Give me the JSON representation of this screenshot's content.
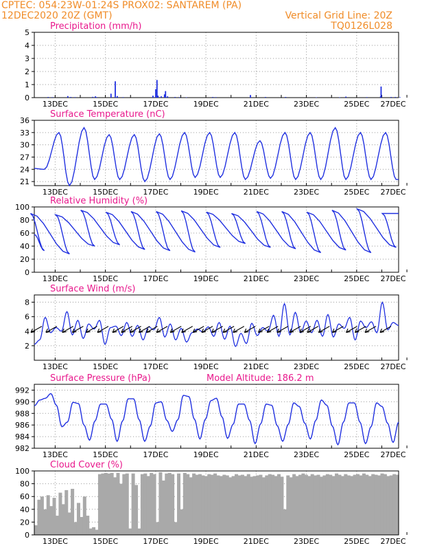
{
  "header": {
    "line1_left": "CPTEC:  054:23W-01:24S   PROX02: SANTAREM (PA)",
    "line2_left": "12DEC2020 20Z (GMT)",
    "line2_right": "Vertical Grid Line: 20Z",
    "line3_right": "TQ0126L028"
  },
  "colors": {
    "header": "#f08c28",
    "title": "#e8188c",
    "series": "#2030e0",
    "cloud": "#a9a9a9",
    "grid": "#9a9a9a"
  },
  "x_tick_labels": [
    "13DEC",
    "15DEC",
    "17DEC",
    "19DEC",
    "21DEC",
    "23DEC",
    "25DEC",
    "27DEC"
  ],
  "chart_data": [
    {
      "type": "bar",
      "title": "Precipitation (mm/h)",
      "ylim": [
        0,
        5
      ],
      "yticks": [
        0,
        1,
        2,
        3,
        4,
        5
      ],
      "series": [
        {
          "spikes": [
            [
              0.55,
              0.05
            ],
            [
              0.72,
              0.04
            ],
            [
              1.33,
              0.12
            ],
            [
              1.45,
              0.05
            ],
            [
              1.62,
              0.04
            ],
            [
              2.32,
              0.06
            ],
            [
              2.43,
              0.1
            ],
            [
              2.48,
              0.04
            ],
            [
              3.05,
              0.3
            ],
            [
              3.22,
              1.25
            ],
            [
              3.3,
              0.12
            ],
            [
              3.53,
              0.04
            ],
            [
              4.72,
              0.15
            ],
            [
              4.83,
              0.65
            ],
            [
              4.88,
              1.35
            ],
            [
              4.92,
              0.15
            ],
            [
              5.05,
              0.1
            ],
            [
              5.18,
              0.25
            ],
            [
              5.22,
              0.5
            ],
            [
              5.3,
              0.1
            ],
            [
              5.6,
              0.05
            ],
            [
              5.78,
              0.04
            ],
            [
              6.05,
              0.03
            ],
            [
              7.1,
              0.05
            ],
            [
              7.22,
              0.04
            ],
            [
              8.6,
              0.2
            ],
            [
              9.2,
              0.05
            ],
            [
              10.0,
              0.05
            ],
            [
              11.22,
              0.03
            ],
            [
              12.15,
              0.03
            ],
            [
              12.4,
              0.08
            ],
            [
              13.23,
              0.04
            ],
            [
              13.78,
              0.1
            ],
            [
              13.8,
              0.85
            ],
            [
              14.2,
              0.05
            ],
            [
              14.37,
              0.05
            ],
            [
              14.55,
              0.04
            ]
          ]
        }
      ]
    },
    {
      "type": "line",
      "title": "Surface Temperature (nC)",
      "ylim": [
        20,
        36
      ],
      "yticks": [
        21,
        24,
        27,
        30,
        33,
        36
      ],
      "series": [
        {
          "min": [
            24,
            20,
            21.5,
            21.5,
            21,
            21.5,
            22,
            22,
            21.5,
            21.8,
            21.5,
            21.5,
            21.5,
            21.5,
            21.5,
            21.5
          ],
          "max": [
            33,
            34.2,
            32.5,
            32.5,
            32.7,
            33,
            33,
            33,
            31,
            33,
            33,
            34.2,
            33,
            33,
            34,
            32
          ]
        }
      ]
    },
    {
      "type": "line",
      "title": "Relative Humidity (%)",
      "ylim": [
        0,
        100
      ],
      "yticks": [
        0,
        20,
        40,
        60,
        80,
        100
      ],
      "series": [
        {
          "min": [
            58,
            33,
            28,
            40,
            42,
            35,
            33,
            31,
            38,
            44,
            38,
            36,
            30,
            34,
            30,
            38,
            37
          ],
          "max": [
            88,
            90,
            88,
            95,
            92,
            93,
            93,
            94,
            92,
            90,
            93,
            93,
            92,
            95,
            97,
            90,
            92
          ]
        }
      ]
    },
    {
      "type": "line",
      "title": "Surface Wind (m/s)",
      "ylim": [
        0,
        9
      ],
      "yticks": [
        2,
        4,
        6,
        8
      ],
      "series": [
        {
          "values": [
            2.2,
            2.8,
            5.9,
            3.8,
            4.5,
            4,
            6.7,
            3.5,
            5.5,
            3,
            5,
            4.3,
            5.5,
            2.2,
            4.5,
            4.7,
            3.4,
            5.2,
            3.3,
            4.8,
            2.8,
            4.6,
            4.2,
            5.9,
            3.2,
            5,
            2.8,
            4.4,
            2.5,
            3.8,
            4.3,
            3.9,
            4.6,
            3.3,
            5.2,
            2.9,
            4.7,
            1.9,
            3.7,
            2.3,
            5.1,
            3.4,
            4.5,
            4,
            6.2,
            3.3,
            7.8,
            3.5,
            6.6,
            3.8,
            5.4,
            3.8,
            5.5,
            3.3,
            6.3,
            3.2,
            5,
            4.4,
            5.9,
            2.8,
            5.4,
            4.5,
            5.3,
            3.8,
            8,
            4.2,
            5.2,
            4.8
          ]
        }
      ],
      "wind_arrows": [
        0.3,
        0.9,
        1.55,
        1.95,
        2.5,
        2.95,
        3.55,
        3.9,
        4.25,
        4.6,
        4.9,
        5.3,
        5.85,
        6.3,
        6.75,
        7.1,
        7.5,
        7.95,
        8.35,
        8.8,
        9.35,
        9.7,
        10.1,
        10.6,
        11,
        11.3,
        11.75,
        12.3,
        12.85,
        13.2,
        13.6,
        14.2
      ]
    },
    {
      "type": "line",
      "title": "Surface Pressure (hPa)",
      "subtitle": "Model Altitude: 186.2 m",
      "ylim": [
        982,
        993
      ],
      "yticks": [
        982,
        984,
        986,
        988,
        990,
        992
      ],
      "series": [
        {
          "values": [
            989.3,
            990.3,
            990.6,
            991.4,
            989.4,
            985.7,
            986.5,
            989.9,
            989.7,
            986,
            983.4,
            986.7,
            989.6,
            989.6,
            987,
            983.2,
            986.7,
            990.5,
            990.5,
            986.9,
            983.2,
            985.8,
            989.8,
            990,
            986.8,
            984.9,
            986.9,
            991.1,
            990.9,
            987,
            983.6,
            987,
            990.2,
            990.6,
            987.4,
            983.7,
            986.1,
            989.6,
            989.6,
            986.8,
            982.8,
            986.2,
            989.6,
            989.4,
            985.9,
            983.2,
            986.1,
            989.8,
            989.2,
            986.3,
            983.6,
            986.8,
            990.3,
            989.4,
            985.8,
            982.6,
            986.5,
            989.8,
            989.8,
            986.5,
            982.8,
            985.7,
            989.8,
            989.2,
            986.3,
            983,
            986.5
          ]
        }
      ]
    },
    {
      "type": "area",
      "title": "Cloud Cover (%)",
      "ylim": [
        0,
        100
      ],
      "yticks": [
        0,
        20,
        40,
        60,
        80,
        100
      ],
      "series": [
        {
          "values": [
            15,
            55,
            60,
            40,
            62,
            45,
            58,
            30,
            66,
            48,
            70,
            35,
            72,
            20,
            50,
            28,
            60,
            30,
            10,
            12,
            8,
            95,
            96,
            97,
            96,
            97,
            90,
            97,
            80,
            95,
            96,
            10,
            96,
            78,
            10,
            95,
            96,
            92,
            97,
            95,
            20,
            98,
            85,
            96,
            97,
            95,
            20,
            96,
            40,
            97,
            95,
            90,
            96,
            94,
            95,
            93,
            92,
            95,
            94,
            96,
            93,
            92,
            94,
            93,
            90,
            92,
            95,
            93,
            94,
            92,
            95,
            91,
            92,
            93,
            94,
            90,
            93,
            95,
            94,
            92,
            95,
            91,
            40,
            93,
            90,
            95,
            92,
            94,
            96,
            94,
            92,
            95,
            93,
            94,
            91,
            93,
            95,
            94,
            92,
            96,
            94,
            92,
            95,
            93,
            92,
            94,
            95,
            93,
            96,
            94,
            92,
            95,
            94,
            93,
            96,
            95,
            92,
            93,
            95,
            94
          ]
        }
      ]
    }
  ]
}
